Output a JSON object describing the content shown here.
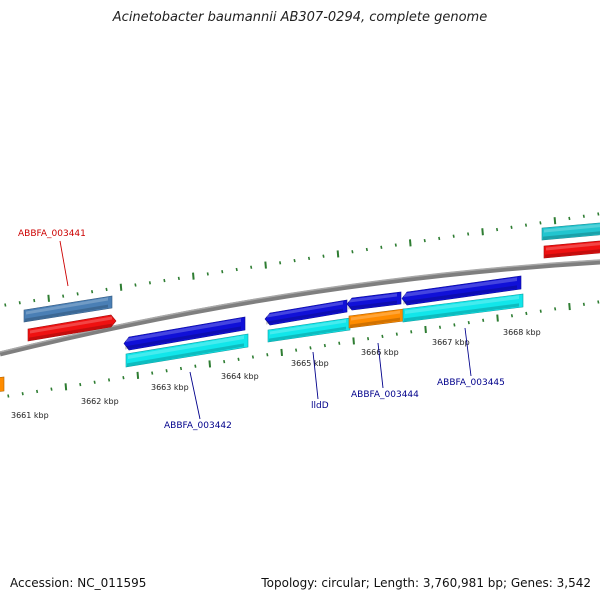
{
  "title": "Acinetobacter baumannii AB307-0294, complete genome",
  "footer": {
    "accession": "Accession: NC_011595",
    "stats": "Topology: circular; Length: 3,760,981 bp; Genes: 3,542"
  },
  "colors": {
    "backbone": "#7f7f7f",
    "tick": "#2e7d32",
    "label_red": "#cc0000",
    "label_blue": "#00008b",
    "blue": "#1010d8",
    "cyan": "#11e6ea",
    "orange": "#ff8c00",
    "red": "#ef1111",
    "steelblue": "#4a7fb5",
    "teal": "#22c5cf"
  },
  "ticks": [
    {
      "label": "3661 kbp"
    },
    {
      "label": "3662 kbp"
    },
    {
      "label": "3663 kbp"
    },
    {
      "label": "3664 kbp"
    },
    {
      "label": "3665 kbp"
    },
    {
      "label": "3666 kbp"
    },
    {
      "label": "3667 kbp"
    },
    {
      "label": "3668 kbp"
    }
  ],
  "gene_labels": [
    {
      "text": "ABBFA_003441"
    },
    {
      "text": "ABBFA_003442"
    },
    {
      "text": "lldD"
    },
    {
      "text": "ABBFA_003444"
    },
    {
      "text": "ABBFA_003445"
    }
  ]
}
